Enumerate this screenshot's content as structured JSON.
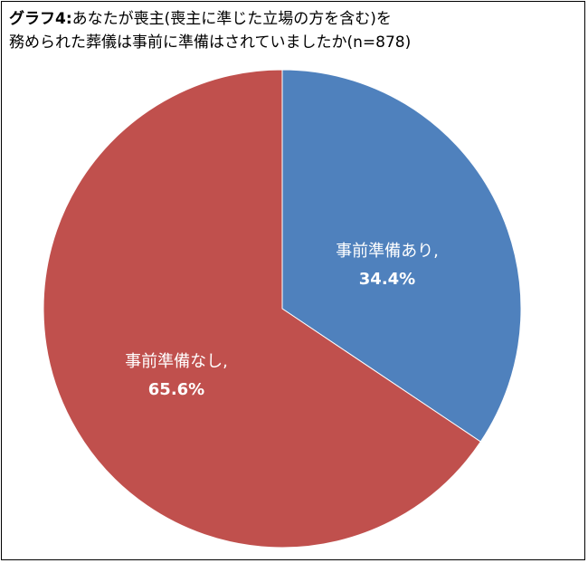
{
  "title": {
    "prefix": "グラフ4:",
    "line1": "あなたが喪主(喪主に準じた立場の方を含む)を",
    "line2": "務められた葬儀は事前に準備はされていましたか(n=878)"
  },
  "chart_data": {
    "type": "pie",
    "title": "グラフ4:あなたが喪主(喪主に準じた立場の方を含む)を務められた葬儀は事前に準備はされていましたか(n=878)",
    "slices": [
      {
        "label": "事前準備あり,",
        "value": 34.4,
        "value_label": "34.4%",
        "color": "#4f81bd"
      },
      {
        "label": "事前準備なし,",
        "value": 65.6,
        "value_label": "65.6%",
        "color": "#c0504d"
      }
    ],
    "start": "12 o'clock",
    "direction": "clockwise",
    "legend": "none"
  }
}
